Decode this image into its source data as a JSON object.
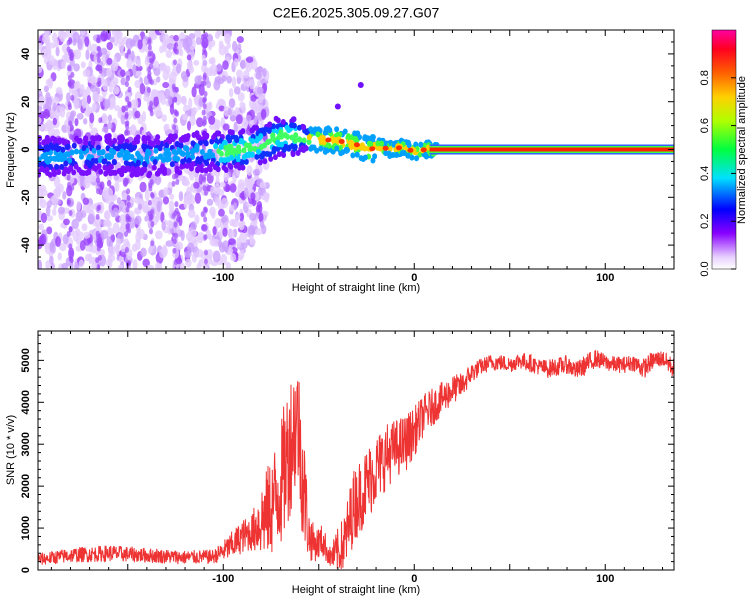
{
  "title": "C2E6.2025.305.09.27.G07",
  "chart_data": [
    {
      "type": "heatmap",
      "xlabel": "Height of straight line (km)",
      "ylabel": "Frequency (Hz)",
      "xlim": [
        -197,
        136
      ],
      "ylim": [
        -50,
        50
      ],
      "xticks": [
        -100,
        0,
        100
      ],
      "xtick_labels": [
        "-100",
        "0",
        "100"
      ],
      "yticks": [
        -40,
        -20,
        0,
        20,
        40
      ],
      "ytick_labels": [
        "-40",
        "-20",
        "0",
        "20",
        "40"
      ],
      "ridge": {
        "x": [
          -195,
          -170,
          -140,
          -115,
          -100,
          -90,
          -80,
          -72,
          -65,
          -60,
          -55,
          -48,
          -42,
          -36,
          -30,
          -24,
          -18,
          -12,
          -6,
          0,
          6,
          12,
          40,
          80,
          136
        ],
        "y": [
          -3,
          -2,
          -3,
          -1,
          -1,
          0,
          2,
          5,
          6,
          5,
          4,
          4,
          4,
          3,
          2,
          0,
          1,
          0,
          1,
          -1,
          0,
          0,
          0,
          0,
          0
        ]
      },
      "scatter_blobs": [
        {
          "x": -28,
          "y": 27
        },
        {
          "x": -40,
          "y": 18
        }
      ],
      "colorbar": {
        "label": "Normalized spectral amplitude",
        "ticks": [
          0.0,
          0.2,
          0.4,
          0.6,
          0.8
        ],
        "tick_labels": [
          "0.0",
          "0.2",
          "0.4",
          "0.6",
          "0.8"
        ],
        "range": [
          0,
          1
        ],
        "colors": [
          "#ffffff",
          "#d9b3ff",
          "#8000ff",
          "#0000ff",
          "#00ffff",
          "#00ff00",
          "#ffff00",
          "#ff8000",
          "#ff0000",
          "#ff0080"
        ]
      }
    },
    {
      "type": "line",
      "xlabel": "Height of straight line (km)",
      "ylabel": "SNR (10 * v/v)",
      "xlim": [
        -197,
        136
      ],
      "ylim": [
        0,
        5700
      ],
      "xticks": [
        -100,
        0,
        100
      ],
      "xtick_labels": [
        "-100",
        "0",
        "100"
      ],
      "yticks": [
        0,
        1000,
        2000,
        3000,
        4000,
        5000
      ],
      "ytick_labels": [
        "0",
        "1000",
        "2000",
        "3000",
        "4000",
        "5000"
      ],
      "color": "#ee3333",
      "series": [
        {
          "name": "SNR",
          "x": [
            -197,
            -180,
            -160,
            -140,
            -120,
            -105,
            -100,
            -95,
            -90,
            -85,
            -80,
            -75,
            -70,
            -67,
            -64,
            -61,
            -58,
            -55,
            -52,
            -48,
            -44,
            -40,
            -37,
            -35,
            -32,
            -28,
            -24,
            -20,
            -15,
            -10,
            -5,
            0,
            5,
            10,
            15,
            20,
            25,
            30,
            35,
            40,
            45,
            50,
            55,
            60,
            65,
            70,
            75,
            80,
            85,
            90,
            95,
            100,
            105,
            110,
            115,
            120,
            125,
            130,
            136
          ],
          "y": [
            250,
            350,
            400,
            350,
            300,
            320,
            450,
            600,
            800,
            900,
            1200,
            1500,
            2000,
            2600,
            3200,
            3600,
            2000,
            800,
            600,
            700,
            300,
            400,
            600,
            900,
            1500,
            1800,
            2100,
            2400,
            2700,
            2900,
            3000,
            3300,
            3700,
            3900,
            4100,
            4300,
            4400,
            4700,
            4850,
            4950,
            4950,
            4900,
            5000,
            4950,
            4850,
            4800,
            4850,
            4900,
            4750,
            4900,
            5050,
            4950,
            4900,
            4900,
            4950,
            4800,
            5000,
            5050,
            4800
          ],
          "noise": [
            150,
            180,
            200,
            180,
            170,
            170,
            250,
            350,
            400,
            450,
            900,
            1200,
            1500,
            1700,
            1700,
            1600,
            1500,
            600,
            400,
            400,
            250,
            600,
            700,
            800,
            900,
            900,
            900,
            850,
            800,
            700,
            700,
            600,
            500,
            450,
            400,
            350,
            300,
            250,
            200,
            200,
            200,
            200,
            200,
            220,
            200,
            220,
            220,
            220,
            220,
            250,
            220,
            200,
            200,
            200,
            200,
            250,
            220,
            200,
            250
          ]
        }
      ]
    }
  ]
}
